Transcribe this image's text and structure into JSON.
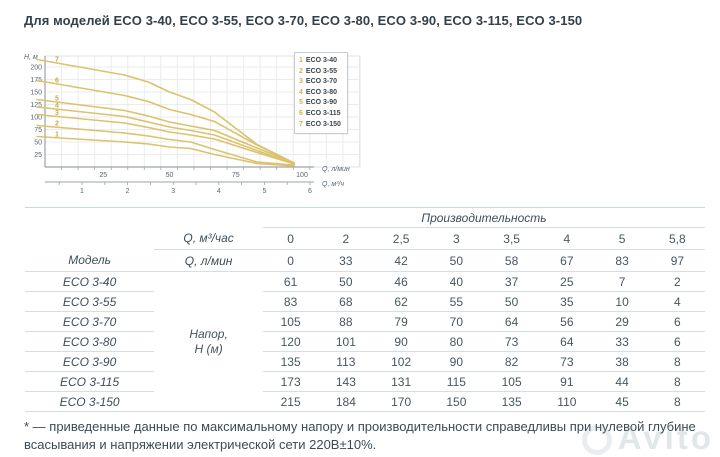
{
  "page": {
    "title": "Для моделей ECO 3-40, ECO 3-55, ECO 3-70, ECO 3-80, ECO 3-90, ECO 3-115, ECO 3-150",
    "footnote": "* — приведенные данные по максимальному напору и производительности справедливы при нулевой глубине всасывания и напряжении электрической сети 220В±10%.",
    "watermark": "Avito"
  },
  "chart_data": {
    "type": "line",
    "ylabel": "Н, м",
    "xlabel_primary": "Q, л/мин",
    "xlabel_secondary": "Q, м³/ч",
    "x_lpm": [
      0,
      33,
      42,
      50,
      58,
      67,
      83,
      97
    ],
    "x_m3h": [
      0,
      2,
      2.5,
      3,
      3.5,
      4,
      5,
      5.8
    ],
    "series": [
      {
        "num": "1",
        "name": "ECO 3-40",
        "values": [
          61,
          50,
          46,
          40,
          37,
          25,
          7,
          2
        ]
      },
      {
        "num": "2",
        "name": "ECO 3-55",
        "values": [
          83,
          68,
          62,
          55,
          50,
          35,
          10,
          4
        ]
      },
      {
        "num": "3",
        "name": "ECO 3-70",
        "values": [
          105,
          88,
          79,
          70,
          64,
          56,
          29,
          6
        ]
      },
      {
        "num": "4",
        "name": "ECO 3-80",
        "values": [
          120,
          101,
          90,
          80,
          73,
          64,
          33,
          6
        ]
      },
      {
        "num": "5",
        "name": "ECO 3-90",
        "values": [
          135,
          113,
          102,
          90,
          82,
          73,
          38,
          8
        ]
      },
      {
        "num": "6",
        "name": "ECO 3-115",
        "values": [
          173,
          143,
          131,
          115,
          105,
          91,
          44,
          8
        ]
      },
      {
        "num": "7",
        "name": "ECO 3-150",
        "values": [
          215,
          184,
          170,
          150,
          135,
          110,
          45,
          8
        ]
      }
    ],
    "y_ticks": [
      25,
      50,
      75,
      100,
      125,
      150,
      175,
      200
    ],
    "x_ticks_lpm": [
      25,
      50,
      75,
      100
    ],
    "x_ticks_m3h": [
      1,
      2,
      3,
      4,
      5,
      6
    ],
    "ylim": [
      0,
      225
    ],
    "xlim_lpm": [
      0,
      100
    ],
    "grid": true,
    "legend_position": "top-right",
    "curve_color": "#dcc26b"
  },
  "table": {
    "header_group": "Производительность",
    "model_header": "Модель",
    "unit_row1_label": "Q, м³/час",
    "unit_row2_label": "Q, л/мин",
    "q_m3h_display": [
      "0",
      "2",
      "2,5",
      "3",
      "3,5",
      "4",
      "5",
      "5,8"
    ],
    "q_lpm_display": [
      "0",
      "33",
      "42",
      "50",
      "58",
      "67",
      "83",
      "97"
    ],
    "value_group_label_line1": "Напор,",
    "value_group_label_line2": "Н (м)",
    "rows": [
      {
        "model": "ECO 3-40",
        "values": [
          "61",
          "50",
          "46",
          "40",
          "37",
          "25",
          "7",
          "2"
        ]
      },
      {
        "model": "ECO 3-55",
        "values": [
          "83",
          "68",
          "62",
          "55",
          "50",
          "35",
          "10",
          "4"
        ]
      },
      {
        "model": "ECO 3-70",
        "values": [
          "105",
          "88",
          "79",
          "70",
          "64",
          "56",
          "29",
          "6"
        ]
      },
      {
        "model": "ECO 3-80",
        "values": [
          "120",
          "101",
          "90",
          "80",
          "73",
          "64",
          "33",
          "6"
        ]
      },
      {
        "model": "ECO 3-90",
        "values": [
          "135",
          "113",
          "102",
          "90",
          "82",
          "73",
          "38",
          "8"
        ]
      },
      {
        "model": "ECO 3-115",
        "values": [
          "173",
          "143",
          "131",
          "115",
          "105",
          "91",
          "44",
          "8"
        ]
      },
      {
        "model": "ECO 3-150",
        "values": [
          "215",
          "184",
          "170",
          "150",
          "135",
          "110",
          "45",
          "8"
        ]
      }
    ]
  }
}
